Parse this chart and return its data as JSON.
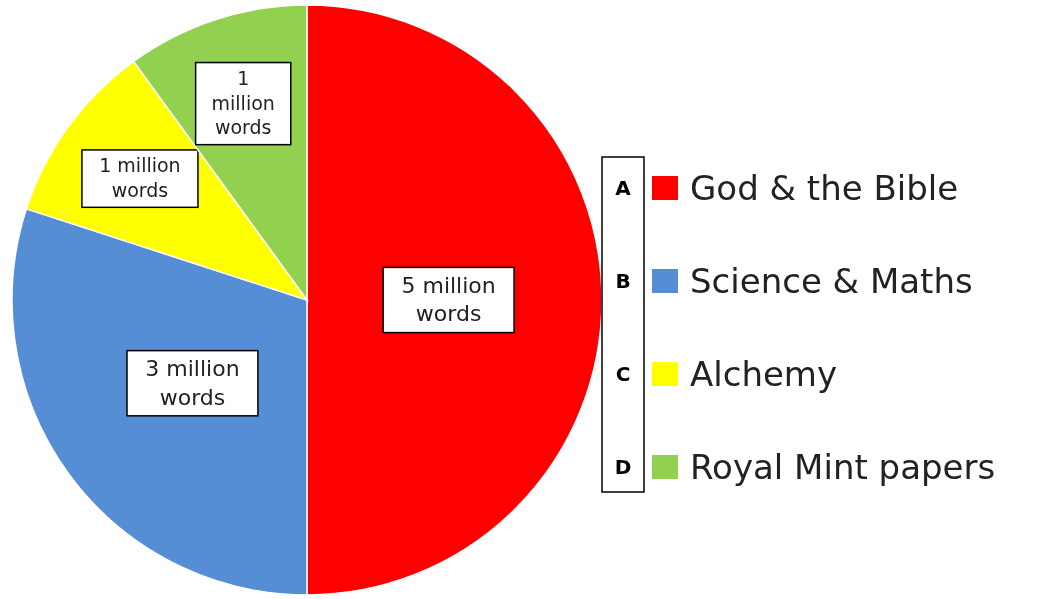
{
  "chart_data": {
    "type": "pie",
    "categories": [
      "God & the Bible",
      "Science & Maths",
      "Alchemy",
      "Royal Mint papers"
    ],
    "values": [
      5,
      3,
      1,
      1
    ],
    "colors": [
      "#ff0000",
      "#558ed5",
      "#ffff00",
      "#92d050"
    ],
    "value_labels": [
      "5 million words",
      "3 million words",
      "1 million words",
      "1 million words"
    ],
    "annotations": [
      "A",
      "B",
      "C",
      "D"
    ],
    "legend": "right"
  }
}
